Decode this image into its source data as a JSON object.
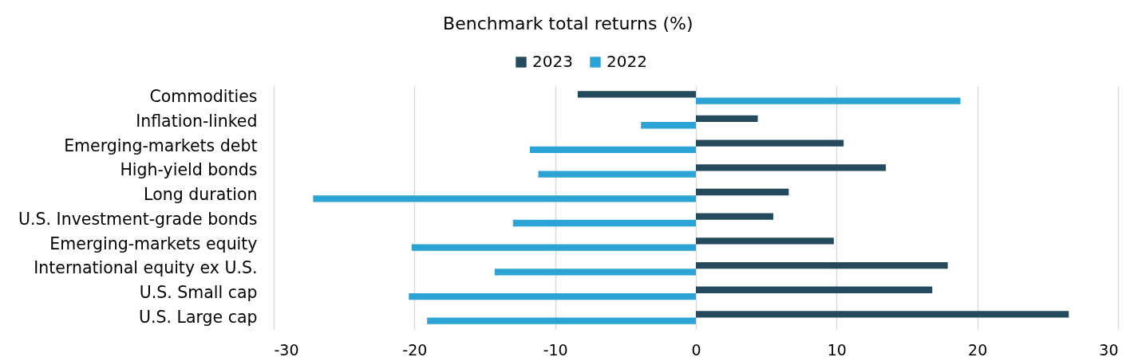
{
  "chart_data": {
    "type": "bar",
    "orientation": "horizontal",
    "title": "Benchmark total returns (%)",
    "categories": [
      "Commodities",
      "Inflation-linked",
      "Emerging-markets debt",
      "High-yield bonds",
      "Long duration",
      "U.S. Investment-grade bonds",
      "Emerging-markets equity",
      "International equity ex U.S.",
      "U.S. Small cap",
      "U.S. Large cap"
    ],
    "series": [
      {
        "name": "2023",
        "color": "#254a5d",
        "values": [
          -8.4,
          4.4,
          10.5,
          13.5,
          6.6,
          5.5,
          9.8,
          17.9,
          16.8,
          26.5
        ]
      },
      {
        "name": "2022",
        "color": "#2ba3d4",
        "values": [
          18.8,
          -3.9,
          -11.8,
          -11.2,
          -27.2,
          -13.0,
          -20.2,
          -14.3,
          -20.4,
          -19.1
        ]
      }
    ],
    "xlim": [
      -30,
      30
    ],
    "xticks": [
      -30,
      -20,
      -10,
      0,
      10,
      20,
      30
    ],
    "grid": "x",
    "legend": "top"
  }
}
